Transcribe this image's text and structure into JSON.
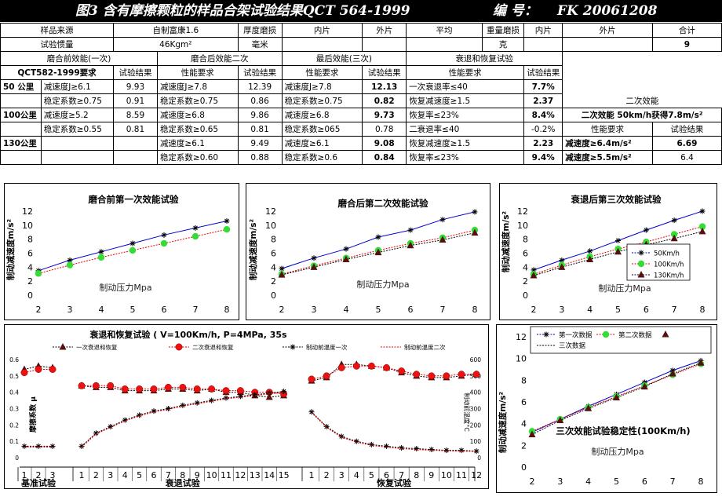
{
  "header": {
    "title": "图3 含有摩擦颗粒的样品合架试验结果QCT 564-1999",
    "code_label": "编 号：",
    "code_value": "FK 20061208"
  },
  "info_rows": {
    "r1": [
      "样品来源",
      "自制富康1.6",
      "厚度磨损",
      "内片",
      "外片",
      "平均",
      "重量磨损",
      "内片",
      "外片",
      "合计"
    ],
    "r2": [
      "试验惯量",
      "46Kgm²",
      "毫米",
      "",
      "",
      "",
      "克",
      "",
      "",
      "9"
    ]
  },
  "group_headers": [
    "磨合前效能(一次)",
    "磨合后效能二次",
    "最后效能(三次)",
    "衰退和恢复试验"
  ],
  "col_headers": [
    "QCT582-1999要求",
    "试验结果",
    "性能要求",
    "试验结果",
    "性能要求",
    "试验结果",
    "性能要求",
    "试验结果"
  ],
  "rows": [
    {
      "speed": "50 公里",
      "c": [
        "减速度J≥6.1",
        "9.93",
        "减速度J≥7.8",
        "12.39",
        "减速度J≥7.8",
        "12.13",
        "一次衰退率≤40",
        "7.7%"
      ]
    },
    {
      "speed": "",
      "c": [
        "稳定系数≥0.75",
        "0.91",
        "稳定系数≥0.75",
        "0.86",
        "稳定系数≥0.75",
        "0.82",
        "恢复减速度≥1.5",
        "2.37"
      ]
    },
    {
      "speed": "100公里",
      "c": [
        "减速度≥5.2",
        "8.59",
        "减速度≥6.8",
        "9.86",
        "减速度≥6.8",
        "9.73",
        "恢复率≤23%",
        "8.4%"
      ]
    },
    {
      "speed": "",
      "c": [
        "稳定系数≥0.55",
        "0.81",
        "稳定系数≥0.65",
        "0.81",
        "稳定系数≥065",
        "0.78",
        "二衰退率≤40",
        "-0.2%"
      ]
    },
    {
      "speed": "130公里",
      "c": [
        "",
        "",
        "减速度≥6.1",
        "9.49",
        "减速度≥6.1",
        "9.08",
        "恢复减速度≥1.5",
        "2.23"
      ]
    },
    {
      "speed": "",
      "c": [
        "",
        "",
        "稳定系数≥0.60",
        "0.88",
        "稳定系数≥0.6",
        "0.84",
        "恢复率≤23%",
        "9.4%"
      ]
    }
  ],
  "side_panel": {
    "title": "二次效能",
    "summary": "二次效能 50km/h获得7.8m/s²",
    "col1": "性能要求",
    "col2": "试验结果",
    "r1": [
      "减速度≥6.4m/s²",
      "6.69"
    ],
    "r2": [
      "减速度≥5.5m/s²",
      "6.4"
    ]
  },
  "chart_data": [
    {
      "type": "line",
      "title": "磨合前第一次效能试验",
      "xlabel": "制动压力Mpa",
      "ylabel": "制动减速度m/s²",
      "xlim": [
        2,
        8
      ],
      "ylim": [
        0,
        12
      ],
      "x": [
        2,
        3,
        4,
        5,
        6,
        7,
        8
      ],
      "series": [
        {
          "name": "",
          "values": [
            3.5,
            5.0,
            6.2,
            7.4,
            8.6,
            9.6,
            10.6
          ],
          "color": "#0000cc",
          "marker": "star"
        },
        {
          "name": "",
          "values": [
            3.1,
            4.3,
            5.4,
            6.4,
            7.4,
            8.4,
            9.4
          ],
          "color": "#ee0000",
          "marker": "green-dot"
        }
      ]
    },
    {
      "type": "line",
      "title": "磨合后第二次效能试验",
      "xlabel": "制动压力Mpa",
      "ylabel": "制动减速度m/s²",
      "xlim": [
        2,
        8
      ],
      "ylim": [
        0,
        12
      ],
      "x": [
        2,
        3,
        4,
        5,
        6,
        7,
        8
      ],
      "series": [
        {
          "name": "",
          "values": [
            3.8,
            5.3,
            6.6,
            8.3,
            9.3,
            10.8,
            11.9
          ],
          "color": "#0000cc",
          "marker": "star"
        },
        {
          "name": "",
          "values": [
            3.0,
            4.2,
            5.3,
            6.4,
            7.4,
            8.2,
            9.3
          ],
          "color": "#ee0000",
          "marker": "green-dot"
        },
        {
          "name": "",
          "values": [
            2.9,
            4.0,
            5.1,
            6.1,
            7.1,
            7.9,
            8.9
          ],
          "color": "#000000",
          "marker": "dark-triangle"
        }
      ]
    },
    {
      "type": "line",
      "title": "衰退后第三次效能试验",
      "xlabel": "制动压力Mpa",
      "ylabel": "制动减速度m/s²",
      "xlim": [
        2,
        8
      ],
      "ylim": [
        0,
        12
      ],
      "x": [
        2,
        3,
        4,
        5,
        6,
        7,
        8
      ],
      "legend": "bottom-right",
      "series": [
        {
          "name": "50Km/h",
          "values": [
            3.6,
            5.0,
            6.3,
            7.8,
            9.3,
            10.7,
            12.0
          ],
          "color": "#0000cc",
          "marker": "star"
        },
        {
          "name": "100Km/h",
          "values": [
            3.0,
            4.3,
            5.5,
            6.6,
            7.6,
            8.7,
            9.8
          ],
          "color": "#ee0000",
          "marker": "green-dot"
        },
        {
          "name": "130Km/h",
          "values": [
            2.8,
            4.0,
            5.1,
            6.2,
            7.2,
            8.1,
            9.1
          ],
          "color": "#000000",
          "marker": "dark-triangle"
        }
      ]
    },
    {
      "type": "scatter",
      "title": "衰退和恢复试验 ( V=100Km/h, P=4MPa, 35s",
      "ylabel": "摩擦系数 μ",
      "y2label": "制动前温度°C",
      "ylim": [
        0,
        0.6
      ],
      "y2lim": [
        0,
        600
      ],
      "groups": [
        {
          "label": "基准试验",
          "ticks": [
            "1",
            "2",
            "3"
          ]
        },
        {
          "label": "衰退试验",
          "ticks": [
            "1",
            "2",
            "3",
            "4",
            "5",
            "6",
            "7",
            "8",
            "9",
            "10",
            "11",
            "12",
            "13",
            "14",
            "15"
          ]
        },
        {
          "label": "恢复试验",
          "ticks": [
            "1",
            "2",
            "3",
            "4",
            "5",
            "6",
            "7",
            "8",
            "9",
            "10",
            "11",
            "12"
          ]
        }
      ],
      "series": [
        {
          "name": "一次衰退和恢复",
          "marker": "dark-triangle",
          "color": "#000000",
          "values": [
            [
              0.54,
              0.56,
              0.55
            ],
            [
              0.44,
              0.43,
              0.43,
              0.41,
              0.41,
              0.41,
              0.42,
              0.42,
              0.41,
              0.42,
              0.4,
              0.4,
              0.38,
              0.37,
              0.38
            ],
            [
              0.47,
              0.49,
              0.57,
              0.57,
              0.56,
              0.55,
              0.52,
              0.5,
              0.49,
              0.49,
              0.5,
              0.51
            ]
          ]
        },
        {
          "name": "二次衰退和恢复",
          "marker": "red-dot",
          "color": "#ee0000",
          "values": [
            [
              0.52,
              0.54,
              0.54
            ],
            [
              0.44,
              0.44,
              0.44,
              0.42,
              0.42,
              0.42,
              0.43,
              0.43,
              0.42,
              0.42,
              0.41,
              0.41,
              0.4,
              0.4,
              0.39
            ],
            [
              0.48,
              0.5,
              0.55,
              0.56,
              0.56,
              0.55,
              0.53,
              0.51,
              0.5,
              0.5,
              0.51,
              0.51
            ]
          ]
        },
        {
          "name": "制动前温度一次",
          "axis": "y2",
          "marker": "star",
          "color": "#000000",
          "values": [
            [
              70,
              70,
              70
            ],
            [
              70,
              150,
              190,
              230,
              260,
              285,
              300,
              320,
              335,
              350,
              365,
              375,
              385,
              395,
              405
            ],
            [
              280,
              190,
              130,
              100,
              80,
              70,
              60,
              55,
              50,
              45,
              45,
              40
            ]
          ]
        },
        {
          "name": "制动前温度二次",
          "axis": "y2",
          "marker": "none",
          "color": "#ee0000",
          "values": [
            [
              65,
              65,
              65
            ],
            [
              65,
              145,
              185,
              225,
              255,
              280,
              295,
              315,
              330,
              345,
              360,
              370,
              380,
              390,
              400
            ],
            [
              275,
              185,
              125,
              95,
              75,
              65,
              55,
              50,
              45,
              42,
              40,
              38
            ]
          ]
        }
      ]
    },
    {
      "type": "line",
      "title": "三次效能试验稳定性(100Km/h)",
      "xlabel": "制动压力Mpa",
      "ylabel": "制动减速度m/s²",
      "xlim": [
        2,
        8
      ],
      "ylim": [
        0,
        12
      ],
      "x": [
        2,
        3,
        4,
        5,
        6,
        7,
        8
      ],
      "legend": "top",
      "series": [
        {
          "name": "第一次数据",
          "values": [
            3.2,
            4.4,
            5.6,
            6.7,
            7.8,
            8.9,
            9.8
          ],
          "color": "#0000cc",
          "marker": "star"
        },
        {
          "name": "第二次数据",
          "values": [
            3.3,
            4.4,
            5.5,
            6.5,
            7.5,
            8.5,
            9.5
          ],
          "color": "#ee0000",
          "marker": "green-dot"
        },
        {
          "name": "三次数据",
          "values": [
            3.0,
            4.3,
            5.4,
            6.4,
            7.4,
            8.6,
            9.6
          ],
          "color": "#000000",
          "marker": "dark-triangle"
        }
      ]
    }
  ]
}
